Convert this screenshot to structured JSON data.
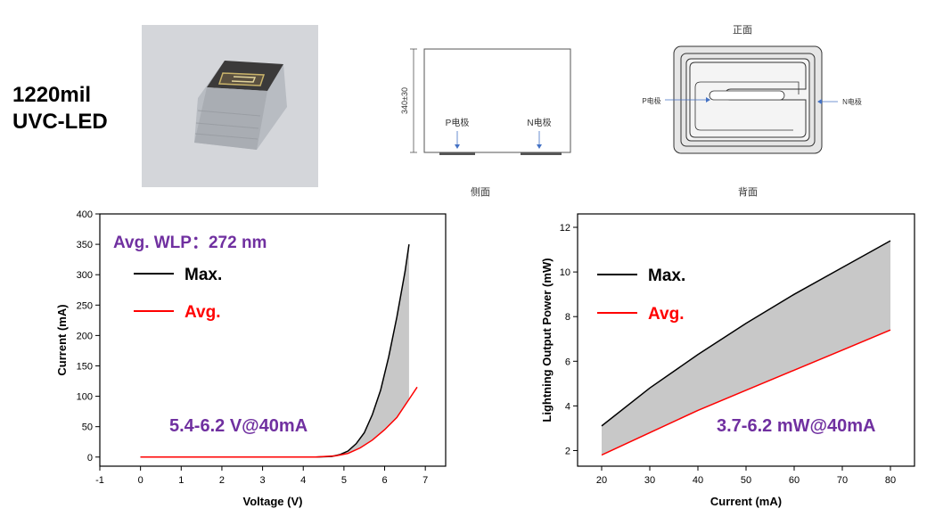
{
  "product": {
    "title_line1": "1220mil",
    "title_line2": "UVC-LED"
  },
  "side_view": {
    "caption": "侧面",
    "dimension_label": "340±30",
    "p_electrode": "P电极",
    "n_electrode": "N电极"
  },
  "front_view": {
    "caption": "正面",
    "back_caption": "背面",
    "p_electrode": "P电极",
    "n_electrode": "N电极"
  },
  "colors": {
    "max": "#000000",
    "avg": "#ff0000",
    "fill": "#c8c8c8",
    "annotation": "#7030a0"
  },
  "chart_data": [
    {
      "type": "line",
      "xlabel": "Voltage (V)",
      "ylabel": "Current (mA)",
      "xlim": [
        -1,
        7.5
      ],
      "ylim": [
        -15,
        400
      ],
      "xticks": [
        -1,
        0,
        1,
        2,
        3,
        4,
        5,
        6,
        7
      ],
      "yticks": [
        0,
        50,
        100,
        150,
        200,
        250,
        300,
        350,
        400
      ],
      "annotations": [
        "Avg. WLP：272 nm",
        "5.4-6.2 V@40mA"
      ],
      "legend": {
        "placement": "top-left"
      },
      "series": [
        {
          "name": "Max.",
          "color": "#000000",
          "x": [
            0,
            4.3,
            4.7,
            4.9,
            5.1,
            5.3,
            5.5,
            5.7,
            5.9,
            6.1,
            6.3,
            6.5,
            6.6
          ],
          "y": [
            0,
            0,
            1,
            4,
            10,
            22,
            40,
            70,
            110,
            165,
            230,
            305,
            350
          ]
        },
        {
          "name": "Avg.",
          "color": "#ff0000",
          "x": [
            0,
            4.3,
            4.8,
            5.1,
            5.4,
            5.7,
            6.0,
            6.3,
            6.6,
            6.8
          ],
          "y": [
            0,
            0,
            2,
            6,
            15,
            28,
            45,
            65,
            95,
            115
          ]
        }
      ],
      "fill_between": {
        "x_end": 6.6
      }
    },
    {
      "type": "line",
      "xlabel": "Current (mA)",
      "ylabel": "Lightning Output Power (mW)",
      "xlim": [
        15,
        85
      ],
      "ylim": [
        1.3,
        12.6
      ],
      "xticks": [
        20,
        30,
        40,
        50,
        60,
        70,
        80
      ],
      "yticks": [
        2,
        4,
        6,
        8,
        10,
        12
      ],
      "annotations": [
        "3.7-6.2 mW@40mA"
      ],
      "legend": {
        "placement": "top-left"
      },
      "series": [
        {
          "name": "Max.",
          "color": "#000000",
          "x": [
            20,
            30,
            40,
            50,
            60,
            70,
            80
          ],
          "y": [
            3.1,
            4.8,
            6.3,
            7.7,
            9.0,
            10.2,
            11.4
          ]
        },
        {
          "name": "Avg.",
          "color": "#ff0000",
          "x": [
            20,
            30,
            40,
            50,
            60,
            70,
            80
          ],
          "y": [
            1.8,
            2.8,
            3.8,
            4.7,
            5.6,
            6.5,
            7.4
          ]
        }
      ],
      "fill_between": {
        "x_end": 80
      }
    }
  ]
}
